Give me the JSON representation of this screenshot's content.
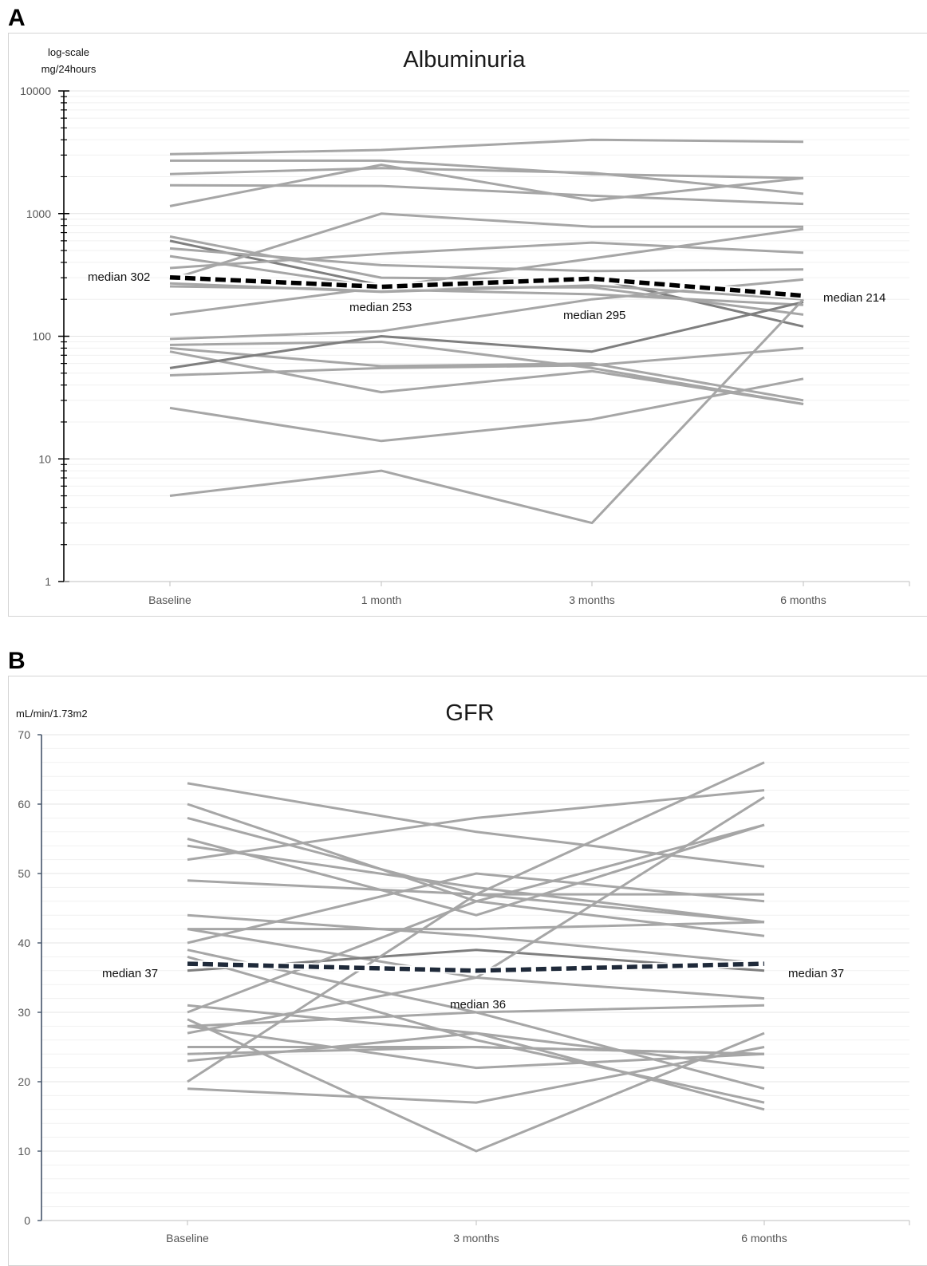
{
  "panels": {
    "a": {
      "letter": "A"
    },
    "b": {
      "letter": "B"
    }
  },
  "colors": {
    "series": "#a6a6a6",
    "series_dark": "#7f7f7f",
    "median_a": "#000000",
    "median_b": "#1f2a3a",
    "axis_b": "#44546a",
    "grid": "#e4e4e4"
  },
  "chart_data": [
    {
      "type": "line",
      "title": "Albuminuria",
      "ylabel_lines": [
        "log-scale",
        "mg/24hours"
      ],
      "yscale": "log",
      "ylim": [
        1,
        10000
      ],
      "yticks": [
        "1",
        "10",
        "100",
        "1000",
        "10000"
      ],
      "categories": [
        "Baseline",
        "1 month",
        "3 months",
        "6 months"
      ],
      "grid": true,
      "series": [
        {
          "values": [
            3050,
            3300,
            4000,
            3850
          ]
        },
        {
          "values": [
            2700,
            2700,
            2100,
            1950
          ]
        },
        {
          "values": [
            2100,
            2350,
            2150,
            1450
          ]
        },
        {
          "values": [
            1700,
            1680,
            1400,
            1200
          ]
        },
        {
          "values": [
            1150,
            2500,
            1280,
            1950
          ]
        },
        {
          "values": [
            650,
            300,
            290,
            210
          ]
        },
        {
          "values": [
            600,
            260,
            300,
            120
          ],
          "emphasis": true
        },
        {
          "values": [
            520,
            380,
            340,
            350
          ]
        },
        {
          "values": [
            450,
            250,
            250,
            150
          ]
        },
        {
          "values": [
            360,
            470,
            580,
            480
          ]
        },
        {
          "values": [
            290,
            1000,
            780,
            780
          ]
        },
        {
          "values": [
            270,
            230,
            260,
            200
          ]
        },
        {
          "values": [
            255,
            240,
            220,
            180
          ]
        },
        {
          "values": [
            150,
            250,
            430,
            750
          ]
        },
        {
          "values": [
            95,
            110,
            200,
            290
          ]
        },
        {
          "values": [
            85,
            90,
            55,
            28
          ]
        },
        {
          "values": [
            80,
            57,
            60,
            30
          ]
        },
        {
          "values": [
            75,
            35,
            52,
            28
          ]
        },
        {
          "values": [
            55,
            100,
            75,
            190
          ],
          "emphasis": true
        },
        {
          "values": [
            48,
            55,
            58,
            80
          ]
        },
        {
          "values": [
            26,
            14,
            21,
            45
          ]
        },
        {
          "values": [
            5,
            8,
            3,
            200
          ]
        }
      ],
      "median": {
        "values": [
          302,
          253,
          295,
          214
        ],
        "labels": [
          "median 302",
          "median 253",
          "median 295",
          "median 214"
        ]
      }
    },
    {
      "type": "line",
      "title": "GFR",
      "ylabel": "mL/min/1.73m2",
      "ylim": [
        0,
        70
      ],
      "yticks": [
        "0",
        "10",
        "20",
        "30",
        "40",
        "50",
        "60",
        "70"
      ],
      "categories": [
        "Baseline",
        "3 months",
        "6 months"
      ],
      "grid": true,
      "series": [
        {
          "values": [
            63,
            56,
            51
          ]
        },
        {
          "values": [
            60,
            46,
            41
          ]
        },
        {
          "values": [
            58,
            47,
            43
          ]
        },
        {
          "values": [
            55,
            44,
            57
          ]
        },
        {
          "values": [
            54,
            48,
            43
          ]
        },
        {
          "values": [
            52,
            58,
            62
          ]
        },
        {
          "values": [
            49,
            47,
            47
          ]
        },
        {
          "values": [
            44,
            41,
            37
          ]
        },
        {
          "values": [
            42,
            42,
            43
          ]
        },
        {
          "values": [
            42,
            35,
            32
          ]
        },
        {
          "values": [
            40,
            50,
            46
          ]
        },
        {
          "values": [
            39,
            30,
            19
          ]
        },
        {
          "values": [
            38,
            26,
            17
          ]
        },
        {
          "values": [
            36,
            39,
            36
          ],
          "emphasis": true
        },
        {
          "values": [
            31,
            27,
            16
          ]
        },
        {
          "values": [
            30,
            46,
            57
          ]
        },
        {
          "values": [
            29,
            10,
            27
          ]
        },
        {
          "values": [
            28,
            22,
            24
          ]
        },
        {
          "values": [
            28,
            30,
            31
          ]
        },
        {
          "values": [
            27,
            35,
            61
          ]
        },
        {
          "values": [
            25,
            25,
            24
          ]
        },
        {
          "values": [
            24,
            25,
            24
          ]
        },
        {
          "values": [
            23,
            27,
            22
          ]
        },
        {
          "values": [
            20,
            47,
            66
          ]
        },
        {
          "values": [
            19,
            17,
            25
          ]
        }
      ],
      "median": {
        "values": [
          37,
          36,
          37
        ],
        "labels": [
          "median 37",
          "median 36",
          "median 37"
        ]
      }
    }
  ]
}
